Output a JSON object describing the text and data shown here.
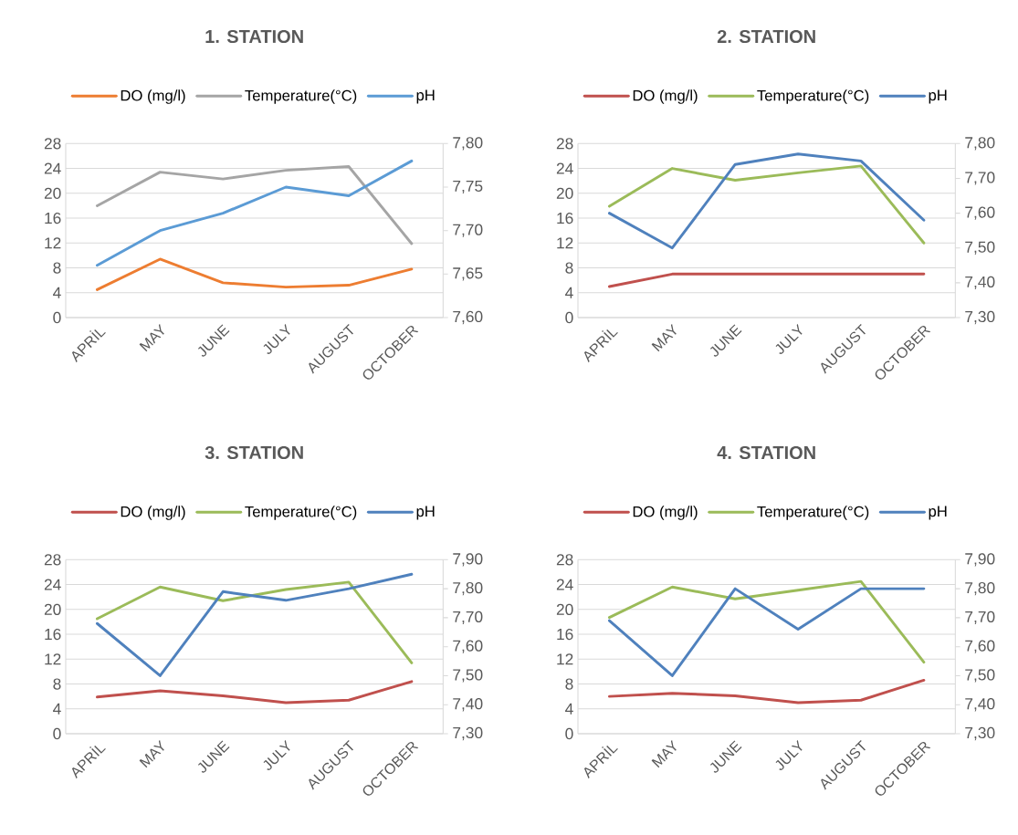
{
  "chart_data": [
    {
      "type": "line",
      "title": "1. STATION",
      "categories": [
        "APRİL",
        "MAY",
        "JUNE",
        "JULY",
        "AUGUST",
        "OCTOBER"
      ],
      "grid": "y",
      "legend": "top",
      "ylim": [
        0,
        28
      ],
      "yticks": [
        0,
        4,
        8,
        12,
        16,
        20,
        24,
        28
      ],
      "y2lim": [
        7.6,
        7.8
      ],
      "y2ticks": [
        {
          "value": 7.6,
          "label": "7,60"
        },
        {
          "value": 7.65,
          "label": "7,65"
        },
        {
          "value": 7.7,
          "label": "7,70"
        },
        {
          "value": 7.75,
          "label": "7,75"
        },
        {
          "value": 7.8,
          "label": "7,80"
        }
      ],
      "series": [
        {
          "name": "DO (mg/l)",
          "color": "#ed7d31",
          "values": [
            4.5,
            9.4,
            5.6,
            4.9,
            5.2,
            7.8
          ]
        },
        {
          "name": "Temperature(°C)",
          "color": "#a5a5a5",
          "values": [
            18.0,
            23.4,
            22.3,
            23.7,
            24.3,
            11.9
          ]
        },
        {
          "name": "pH",
          "color": "#5b9bd5",
          "axis": "y2",
          "values": [
            7.66,
            7.7,
            7.72,
            7.75,
            7.74,
            7.78
          ]
        }
      ]
    },
    {
      "type": "line",
      "title": "2. STATION",
      "categories": [
        "APRİL",
        "MAY",
        "JUNE",
        "JULY",
        "AUGUST",
        "OCTOBER"
      ],
      "grid": "y",
      "legend": "top",
      "ylim": [
        0,
        28
      ],
      "yticks": [
        0,
        4,
        8,
        12,
        16,
        20,
        24,
        28
      ],
      "y2lim": [
        7.3,
        7.8
      ],
      "y2ticks": [
        {
          "value": 7.3,
          "label": "7,30"
        },
        {
          "value": 7.4,
          "label": "7,40"
        },
        {
          "value": 7.5,
          "label": "7,50"
        },
        {
          "value": 7.6,
          "label": "7,60"
        },
        {
          "value": 7.7,
          "label": "7,70"
        },
        {
          "value": 7.8,
          "label": "7,80"
        }
      ],
      "series": [
        {
          "name": "DO (mg/l)",
          "color": "#c0504d",
          "values": [
            5.0,
            7.0,
            7.0,
            7.0,
            7.0,
            7.0
          ]
        },
        {
          "name": "Temperature(°C)",
          "color": "#9bbb59",
          "values": [
            17.9,
            24.0,
            22.1,
            23.3,
            24.4,
            12.0
          ]
        },
        {
          "name": "pH",
          "color": "#4f81bd",
          "axis": "y2",
          "values": [
            7.6,
            7.5,
            7.74,
            7.77,
            7.75,
            7.58
          ]
        }
      ]
    },
    {
      "type": "line",
      "title": "3. STATION",
      "categories": [
        "APRİL",
        "MAY",
        "JUNE",
        "JULY",
        "AUGUST",
        "OCTOBER"
      ],
      "grid": "y",
      "legend": "top",
      "ylim": [
        0,
        28
      ],
      "yticks": [
        0,
        4,
        8,
        12,
        16,
        20,
        24,
        28
      ],
      "y2lim": [
        7.3,
        7.9
      ],
      "y2ticks": [
        {
          "value": 7.3,
          "label": "7,30"
        },
        {
          "value": 7.4,
          "label": "7,40"
        },
        {
          "value": 7.5,
          "label": "7,50"
        },
        {
          "value": 7.6,
          "label": "7,60"
        },
        {
          "value": 7.7,
          "label": "7,70"
        },
        {
          "value": 7.8,
          "label": "7,80"
        },
        {
          "value": 7.9,
          "label": "7,90"
        }
      ],
      "series": [
        {
          "name": "DO (mg/l)",
          "color": "#c0504d",
          "values": [
            5.9,
            6.9,
            6.1,
            5.0,
            5.4,
            8.4
          ]
        },
        {
          "name": "Temperature(°C)",
          "color": "#9bbb59",
          "values": [
            18.5,
            23.6,
            21.4,
            23.2,
            24.4,
            11.4
          ]
        },
        {
          "name": "pH",
          "color": "#4f81bd",
          "axis": "y2",
          "values": [
            7.68,
            7.5,
            7.79,
            7.76,
            7.8,
            7.85
          ]
        }
      ]
    },
    {
      "type": "line",
      "title": "4. STATION",
      "categories": [
        "APRİL",
        "MAY",
        "JUNE",
        "JULY",
        "AUGUST",
        "OCTOBER"
      ],
      "grid": "y",
      "legend": "top",
      "ylim": [
        0,
        28
      ],
      "yticks": [
        0,
        4,
        8,
        12,
        16,
        20,
        24,
        28
      ],
      "y2lim": [
        7.3,
        7.9
      ],
      "y2ticks": [
        {
          "value": 7.3,
          "label": "7,30"
        },
        {
          "value": 7.4,
          "label": "7,40"
        },
        {
          "value": 7.5,
          "label": "7,50"
        },
        {
          "value": 7.6,
          "label": "7,60"
        },
        {
          "value": 7.7,
          "label": "7,70"
        },
        {
          "value": 7.8,
          "label": "7,80"
        },
        {
          "value": 7.9,
          "label": "7,90"
        }
      ],
      "series": [
        {
          "name": "DO (mg/l)",
          "color": "#c0504d",
          "values": [
            6.0,
            6.5,
            6.1,
            5.0,
            5.4,
            8.6
          ]
        },
        {
          "name": "Temperature(°C)",
          "color": "#9bbb59",
          "values": [
            18.7,
            23.6,
            21.7,
            23.1,
            24.5,
            11.5
          ]
        },
        {
          "name": "pH",
          "color": "#4f81bd",
          "axis": "y2",
          "values": [
            7.69,
            7.5,
            7.8,
            7.66,
            7.8,
            7.8
          ]
        }
      ]
    }
  ]
}
